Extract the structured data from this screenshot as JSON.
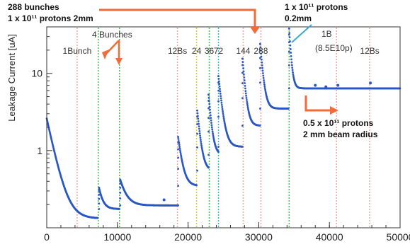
{
  "chart_data": {
    "type": "scatter",
    "title": "",
    "xlabel": "",
    "ylabel": "Leakage Current [uA]",
    "yscale": "log",
    "xlim": [
      0,
      50000
    ],
    "ylim": [
      0.1,
      40
    ],
    "grid": false,
    "x_ticks": [
      0,
      10000,
      20000,
      30000,
      40000,
      50000
    ],
    "x_tick_labels": [
      "0",
      "10000",
      "20000",
      "30000",
      "40000",
      "50000"
    ],
    "y_ticks": [
      1,
      10
    ],
    "y_tick_labels": [
      "1",
      "10"
    ],
    "series": [
      {
        "color": "#2a56c6",
        "segments": [
          {
            "x0": 0,
            "x1": 7200,
            "peak": 2.6,
            "base": 0.132,
            "tau": 1000
          },
          {
            "x0": 7400,
            "x1": 10300,
            "peak": 0.33,
            "base": 0.175,
            "tau": 500
          },
          {
            "x0": 10400,
            "x1": 18600,
            "peak": 0.42,
            "base": 0.195,
            "tau": 800
          },
          {
            "x0": 18600,
            "x1": 21200,
            "peak": 1.5,
            "base": 0.35,
            "tau": 500
          },
          {
            "x0": 21300,
            "x1": 22900,
            "peak": 3.3,
            "base": 0.55,
            "tau": 400
          },
          {
            "x0": 22900,
            "x1": 24300,
            "peak": 5.3,
            "base": 0.88,
            "tau": 350
          },
          {
            "x0": 24300,
            "x1": 27700,
            "peak": 9.2,
            "base": 1.12,
            "tau": 450
          },
          {
            "x0": 27700,
            "x1": 30200,
            "peak": 15.5,
            "base": 2.1,
            "tau": 350
          },
          {
            "x0": 30200,
            "x1": 34200,
            "peak": 24.0,
            "base": 3.5,
            "tau": 350
          },
          {
            "x0": 34300,
            "x1": 50500,
            "peak": 38.0,
            "base": 6.4,
            "tau": 250
          }
        ],
        "spikes": [
          {
            "x": 16600,
            "y": 0.23
          },
          {
            "x": 38000,
            "y": 7.0
          },
          {
            "x": 39500,
            "y": 6.7
          },
          {
            "x": 41200,
            "y": 7.0
          },
          {
            "x": 45800,
            "y": 7.5
          }
        ]
      }
    ],
    "markers": [
      {
        "x": 4300,
        "color": "#f0a6a6",
        "style": "dotted",
        "label": "1Bunch"
      },
      {
        "x": 7300,
        "color": "#4cc04c",
        "style": "dotted",
        "label": ""
      },
      {
        "x": 10300,
        "color": "#4cc04c",
        "style": "dotted",
        "label": ""
      },
      {
        "x": 18500,
        "color": "#f0a6a6",
        "style": "dotted",
        "label": "12Bs"
      },
      {
        "x": 21200,
        "color": "#d0d040",
        "style": "dotted",
        "label": "24"
      },
      {
        "x": 23000,
        "color": "#4cc04c",
        "style": "dotted",
        "label": "36"
      },
      {
        "x": 24300,
        "color": "#3aaad0",
        "style": "dotted",
        "label": "72"
      },
      {
        "x": 27800,
        "color": "#f0a6a6",
        "style": "dotted",
        "label": "144"
      },
      {
        "x": 30300,
        "color": "#f0a6a6",
        "style": "dotted",
        "label": "288"
      },
      {
        "x": 34300,
        "color": "#4cc04c",
        "style": "dotted",
        "label": ""
      },
      {
        "x": 41000,
        "color": "#f0a6a6",
        "style": "dotted",
        "label": ""
      },
      {
        "x": 45700,
        "color": "#f0a6a6",
        "style": "dotted",
        "label": "12Bs"
      }
    ],
    "annotations": [
      {
        "id": "four_bunches",
        "text": "4 Bunches"
      },
      {
        "id": "one_b",
        "lines": [
          "1B",
          "(8.5E10p)"
        ]
      },
      {
        "id": "top_left",
        "lines": [
          "0.5 x 10¹¹ protons",
          "2 mm beam radius"
        ]
      },
      {
        "id": "top_right",
        "lines": [
          "288 bunches",
          "1 x 10¹¹ protons 2mm"
        ]
      },
      {
        "id": "lower_right",
        "lines": [
          "1 x 10¹¹ protons",
          "0.2mm"
        ]
      }
    ],
    "colors": {
      "data": "#2a56c6",
      "arrow": "#f26b3a"
    }
  }
}
